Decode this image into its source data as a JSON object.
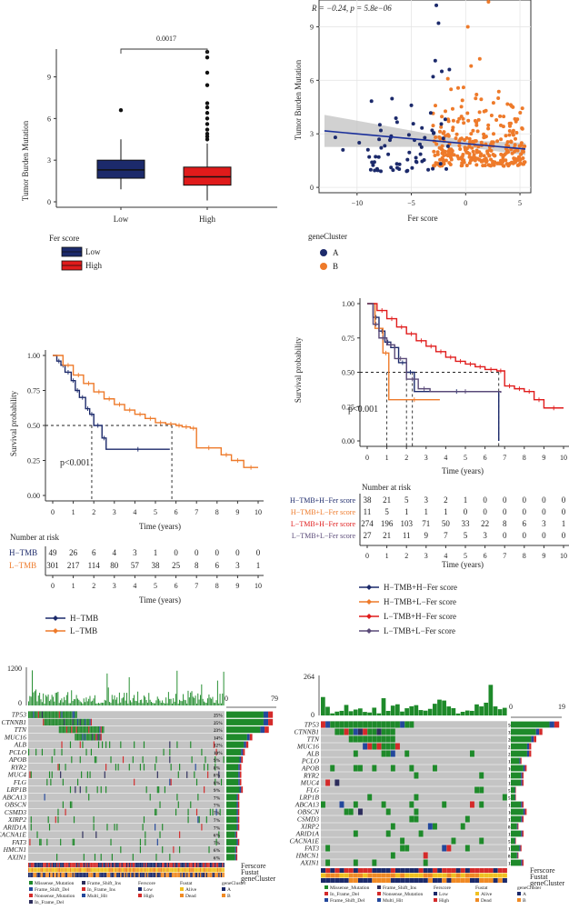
{
  "colors": {
    "navy": "#1c2a6b",
    "red": "#e01b1b",
    "orange": "#ee7a2a",
    "purple": "#5a4a78",
    "green": "#1e8a2a",
    "grey": "#c4c4c4",
    "blue_cell": "#23489c",
    "red_cell": "#d42a2a",
    "dark_cell": "#2d2d5c",
    "yellow": "#f0c020",
    "ribbon_orange": "#f08a24"
  },
  "chart_data": [
    {
      "id": "A",
      "type": "box",
      "title": "",
      "ylabel": "Tumor Burden Mutation",
      "categories": [
        "Low",
        "High"
      ],
      "ylim": [
        0,
        11
      ],
      "yticks": [
        "0",
        "3",
        "6",
        "9"
      ],
      "pvalue": "0.0017",
      "boxes": [
        {
          "name": "Low",
          "q1": 1.7,
          "median": 2.3,
          "q3": 3.0,
          "whisker_low": 0.9,
          "whisker_high": 4.5,
          "outliers": [
            6.6
          ]
        },
        {
          "name": "High",
          "q1": 1.2,
          "median": 1.8,
          "q3": 2.5,
          "whisker_low": 0.1,
          "whisker_high": 4.2,
          "outliers": [
            4.5,
            4.7,
            4.9,
            5.2,
            5.6,
            6.0,
            6.4,
            6.8,
            7.1,
            8.4,
            9.3,
            10.4,
            10.8
          ]
        }
      ],
      "legend": {
        "title": "Fer score",
        "items": [
          "Low",
          "High"
        ]
      }
    },
    {
      "id": "B",
      "type": "scatter",
      "xlabel": "Fer score",
      "ylabel": "Tumor Burden Mutation",
      "annotation": "R = −0.24, p = 5.8e−06",
      "xlim": [
        -13.5,
        6
      ],
      "ylim": [
        -0.3,
        10.5
      ],
      "xticks": [
        "−10",
        "−5",
        "0",
        "5"
      ],
      "yticks": [
        "0",
        "3",
        "6",
        "9"
      ],
      "fit": {
        "slope": -0.055,
        "intercept": 2.45
      },
      "legend": {
        "title": "geneCluster",
        "items": [
          "A",
          "B"
        ]
      }
    },
    {
      "id": "C",
      "type": "line",
      "ylabel": "Survival probability",
      "xlabel": "Time (years)",
      "xticks": [
        "0",
        "1",
        "2",
        "3",
        "4",
        "5",
        "6",
        "7",
        "8",
        "9",
        "10"
      ],
      "yticks": [
        "0.00",
        "0.25",
        "0.50",
        "0.75",
        "1.00"
      ],
      "pvalue": "p<0.001",
      "series": [
        {
          "name": "H−TMB",
          "x": [
            0,
            0.2,
            0.4,
            0.6,
            0.9,
            1.1,
            1.3,
            1.6,
            1.8,
            2.0,
            2.4,
            2.6,
            5.7
          ],
          "y": [
            1.0,
            0.96,
            0.93,
            0.88,
            0.82,
            0.75,
            0.7,
            0.62,
            0.58,
            0.5,
            0.41,
            0.33,
            0.33
          ]
        },
        {
          "name": "L−TMB",
          "x": [
            0,
            0.5,
            1.0,
            1.5,
            2.0,
            2.5,
            3.0,
            3.5,
            4.0,
            4.5,
            5.0,
            5.5,
            6.0,
            6.3,
            6.7,
            7.0,
            8.2,
            8.7,
            9.3,
            10.0
          ],
          "y": [
            1.0,
            0.93,
            0.86,
            0.8,
            0.74,
            0.69,
            0.65,
            0.61,
            0.58,
            0.55,
            0.52,
            0.51,
            0.5,
            0.49,
            0.48,
            0.34,
            0.29,
            0.25,
            0.2,
            0.2
          ]
        }
      ],
      "median_refs": [
        1.9,
        5.8
      ],
      "risk": {
        "label": "Number at risk",
        "rows": [
          {
            "name": "H−TMB",
            "values": [
              "49",
              "26",
              "6",
              "4",
              "3",
              "1",
              "0",
              "0",
              "0",
              "0",
              "0"
            ]
          },
          {
            "name": "L−TMB",
            "values": [
              "301",
              "217",
              "114",
              "80",
              "57",
              "38",
              "25",
              "8",
              "6",
              "3",
              "1"
            ]
          }
        ]
      },
      "legend": [
        "H−TMB",
        "L−TMB"
      ]
    },
    {
      "id": "D",
      "type": "line",
      "ylabel": "Survival probability",
      "xlabel": "Time (years)",
      "xticks": [
        "0",
        "1",
        "2",
        "3",
        "4",
        "5",
        "6",
        "7",
        "8",
        "9",
        "10"
      ],
      "yticks": [
        "0.00",
        "0.25",
        "0.50",
        "0.75",
        "1.00"
      ],
      "pvalue": "p<0.001",
      "series": [
        {
          "name": "H−TMB+H−Fer score",
          "x": [
            0,
            0.3,
            0.6,
            0.9,
            1.2,
            1.6,
            2.0,
            2.4,
            6.7
          ],
          "y": [
            1.0,
            0.9,
            0.8,
            0.72,
            0.68,
            0.57,
            0.5,
            0.36,
            0.0
          ]
        },
        {
          "name": "H−TMB+L−Fer score",
          "x": [
            0,
            0.4,
            0.8,
            1.1,
            3.7
          ],
          "y": [
            1.0,
            0.82,
            0.64,
            0.3,
            0.3
          ]
        },
        {
          "name": "L−TMB+H−Fer score",
          "x": [
            0,
            0.5,
            1.0,
            1.5,
            2.0,
            2.5,
            3.0,
            3.5,
            4.0,
            4.5,
            5.0,
            5.5,
            6.0,
            6.6,
            7.0,
            7.5,
            8.0,
            8.5,
            9.0,
            10.0
          ],
          "y": [
            1.0,
            0.95,
            0.89,
            0.83,
            0.78,
            0.73,
            0.69,
            0.65,
            0.61,
            0.58,
            0.56,
            0.54,
            0.52,
            0.51,
            0.4,
            0.38,
            0.36,
            0.3,
            0.24,
            0.24
          ]
        },
        {
          "name": "L−TMB+L−Fer score",
          "x": [
            0,
            0.3,
            0.6,
            1.0,
            1.4,
            2.0,
            2.6,
            3.2,
            6.8
          ],
          "y": [
            1.0,
            0.85,
            0.75,
            0.7,
            0.6,
            0.45,
            0.38,
            0.36,
            0.35
          ]
        }
      ],
      "median_refs": [
        1.0,
        2.0,
        2.3,
        6.7
      ],
      "risk": {
        "label": "Number at risk",
        "rows": [
          {
            "name": "H−TMB+H−Fer score",
            "values": [
              "38",
              "21",
              "5",
              "3",
              "2",
              "1",
              "0",
              "0",
              "0",
              "0",
              "0"
            ]
          },
          {
            "name": "H−TMB+L−Fer score",
            "values": [
              "11",
              "5",
              "1",
              "1",
              "1",
              "0",
              "0",
              "0",
              "0",
              "0",
              "0"
            ]
          },
          {
            "name": "L−TMB+H−Fer score",
            "values": [
              "274",
              "196",
              "103",
              "71",
              "50",
              "33",
              "22",
              "8",
              "6",
              "3",
              "1"
            ]
          },
          {
            "name": "L−TMB+L−Fer score",
            "values": [
              "27",
              "21",
              "11",
              "9",
              "7",
              "5",
              "3",
              "0",
              "0",
              "0",
              "0"
            ]
          }
        ]
      },
      "legend": [
        "H−TMB+H−Fer score",
        "H−TMB+L−Fer score",
        "L−TMB+H−Fer score",
        "L−TMB+L−Fer score"
      ]
    },
    {
      "id": "E",
      "type": "heatmap",
      "top_max": "1200",
      "side_range": [
        "0",
        "79"
      ],
      "genes": [
        {
          "name": "TP53",
          "pct": "25%",
          "bar": 0.93
        },
        {
          "name": "CTNNB1",
          "pct": "25%",
          "bar": 0.93
        },
        {
          "name": "TTN",
          "pct": "23%",
          "bar": 0.85
        },
        {
          "name": "MUC16",
          "pct": "14%",
          "bar": 0.52
        },
        {
          "name": "ALB",
          "pct": "12%",
          "bar": 0.44
        },
        {
          "name": "PCLO",
          "pct": "10%",
          "bar": 0.37
        },
        {
          "name": "APOB",
          "pct": "9%",
          "bar": 0.33
        },
        {
          "name": "RYR2",
          "pct": "8%",
          "bar": 0.3
        },
        {
          "name": "MUC4",
          "pct": "8%",
          "bar": 0.3
        },
        {
          "name": "FLG",
          "pct": "8%",
          "bar": 0.3
        },
        {
          "name": "LRP1B",
          "pct": "9%",
          "bar": 0.33
        },
        {
          "name": "ABCA13",
          "pct": "7%",
          "bar": 0.26
        },
        {
          "name": "OBSCN",
          "pct": "7%",
          "bar": 0.26
        },
        {
          "name": "CSMD3",
          "pct": "7%",
          "bar": 0.26
        },
        {
          "name": "XIRP2",
          "pct": "7%",
          "bar": 0.26
        },
        {
          "name": "ARID1A",
          "pct": "7%",
          "bar": 0.26
        },
        {
          "name": "CACNA1E",
          "pct": "6%",
          "bar": 0.22
        },
        {
          "name": "FAT3",
          "pct": "7%",
          "bar": 0.26
        },
        {
          "name": "HMCN1",
          "pct": "6%",
          "bar": 0.22
        },
        {
          "name": "AXIN1",
          "pct": "6%",
          "bar": 0.22
        }
      ],
      "annotation_tracks": [
        "Ferscore",
        "Fustat",
        "geneCluster"
      ]
    },
    {
      "id": "F",
      "type": "heatmap",
      "top_max": "264",
      "side_range": [
        "0",
        "19"
      ],
      "genes": [
        {
          "name": "TP53",
          "pct": "50%",
          "bar": 0.95
        },
        {
          "name": "CTNNB1",
          "pct": "32%",
          "bar": 0.62
        },
        {
          "name": "TTN",
          "pct": "26%",
          "bar": 0.5
        },
        {
          "name": "MUC16",
          "pct": "21%",
          "bar": 0.4
        },
        {
          "name": "ALB",
          "pct": "21%",
          "bar": 0.4
        },
        {
          "name": "PCLO",
          "pct": "11%",
          "bar": 0.21
        },
        {
          "name": "APOB",
          "pct": "16%",
          "bar": 0.31
        },
        {
          "name": "RYR2",
          "pct": "13%",
          "bar": 0.25
        },
        {
          "name": "MUC4",
          "pct": "13%",
          "bar": 0.25
        },
        {
          "name": "FLG",
          "pct": "5%",
          "bar": 0.1
        },
        {
          "name": "LRP1B",
          "pct": "5%",
          "bar": 0.1
        },
        {
          "name": "ABCA13",
          "pct": "13%",
          "bar": 0.25
        },
        {
          "name": "OBSCN",
          "pct": "16%",
          "bar": 0.31
        },
        {
          "name": "CSMD3",
          "pct": "13%",
          "bar": 0.25
        },
        {
          "name": "XIRP2",
          "pct": "8%",
          "bar": 0.15
        },
        {
          "name": "ARID1A",
          "pct": "13%",
          "bar": 0.25
        },
        {
          "name": "CACNA1E",
          "pct": "5%",
          "bar": 0.1
        },
        {
          "name": "FAT3",
          "pct": "11%",
          "bar": 0.21
        },
        {
          "name": "HMCN1",
          "pct": "8%",
          "bar": 0.15
        },
        {
          "name": "AXIN1",
          "pct": "13%",
          "bar": 0.25
        }
      ],
      "annotation_tracks": [
        "Ferscore",
        "Fustat",
        "geneCluster"
      ]
    }
  ],
  "mut_legend": {
    "col1": [
      "Missense_Mutation",
      "Frame_Shift_Del",
      "In_Frame_Del"
    ],
    "col2": [
      "Frame_Shift_Ins",
      "In_Frame_Ins",
      "Multi_Hit"
    ],
    "col2_f": [
      "Frame_Shift_Ins",
      "Nonsense_Mutation",
      "Multi_Hit"
    ],
    "col1_f": [
      "Missense_Mutation",
      "In_Frame_Del",
      "Frame_Shift_Del"
    ],
    "col1_e": [
      "Missense_Mutation",
      "Frame_Shift_Del",
      "Nonsense_Mutation",
      "In_Frame_Del"
    ],
    "col2_e": [
      "Frame_Shift_Ins",
      "In_Frame_Ins",
      "Multi_Hit"
    ],
    "fer_title": "Ferscore",
    "fer_items": [
      "Low",
      "High"
    ],
    "fu_title": "Fustat",
    "fu_items": [
      "Alive",
      "Dead"
    ],
    "gc_title": "geneCluster",
    "gc_items": [
      "A",
      "B"
    ]
  }
}
